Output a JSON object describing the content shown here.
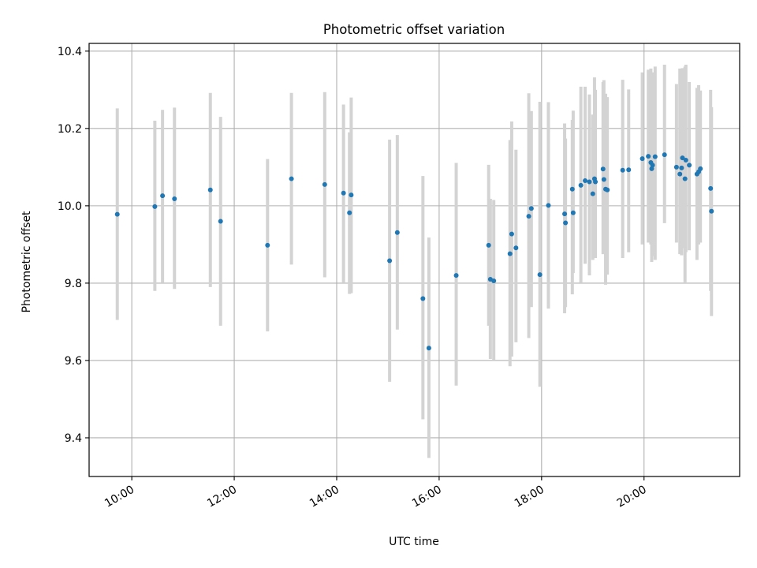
{
  "chart_data": {
    "type": "scatter",
    "title": "Photometric offset variation",
    "xlabel": "UTC time",
    "ylabel": "Photometric offset",
    "x_ticks": [
      "10:00",
      "12:00",
      "14:00",
      "16:00",
      "18:00",
      "20:00"
    ],
    "x_tick_values": [
      10.0,
      12.0,
      14.0,
      16.0,
      18.0,
      20.0
    ],
    "y_ticks": [
      "9.4",
      "9.6",
      "9.8",
      "10.0",
      "10.2",
      "10.4"
    ],
    "y_tick_values": [
      9.4,
      9.6,
      9.8,
      10.0,
      10.2,
      10.4
    ],
    "xlim": [
      "09:10",
      "21:52"
    ],
    "ylim": [
      9.3,
      10.42
    ],
    "grid": true,
    "x_tick_label_rotation_deg": 30,
    "colors": {
      "point": "#1f77b4",
      "errorbar": "#d3d3d3",
      "grid": "#b0b0b0"
    },
    "series": [
      {
        "x": [
          "09:43",
          "10:27",
          "10:36",
          "10:50",
          "11:32",
          "11:44",
          "12:39",
          "13:07",
          "13:46",
          "14:08",
          "14:15",
          "14:17",
          "15:02",
          "15:11",
          "15:41",
          "15:48",
          "16:20",
          "16:58",
          "17:00",
          "17:04",
          "17:23",
          "17:25",
          "17:30",
          "17:45",
          "17:48",
          "17:58",
          "18:08",
          "18:27",
          "18:28",
          "18:36",
          "18:37",
          "18:46",
          "18:51",
          "18:56",
          "19:00",
          "19:02",
          "19:03",
          "19:12",
          "19:13",
          "19:15",
          "19:17",
          "19:35",
          "19:42",
          "19:58",
          "20:05",
          "20:08",
          "20:09",
          "20:10",
          "20:13",
          "20:24",
          "20:38",
          "20:42",
          "20:44",
          "20:45",
          "20:48",
          "20:49",
          "20:53",
          "21:02",
          "21:04",
          "21:06",
          "21:18",
          "21:19"
        ],
        "y": [
          9.978,
          9.998,
          10.026,
          10.018,
          10.041,
          9.96,
          9.898,
          10.07,
          10.055,
          10.033,
          9.982,
          10.028,
          9.858,
          9.931,
          9.76,
          9.632,
          9.82,
          9.898,
          9.81,
          9.806,
          9.876,
          9.927,
          9.891,
          9.973,
          9.993,
          9.822,
          10.001,
          9.979,
          9.956,
          10.043,
          9.982,
          10.053,
          10.065,
          10.062,
          10.031,
          10.07,
          10.062,
          10.095,
          10.068,
          10.043,
          10.041,
          10.092,
          10.093,
          10.122,
          10.128,
          10.112,
          10.096,
          10.105,
          10.127,
          10.132,
          10.1,
          10.082,
          10.098,
          10.124,
          10.07,
          10.118,
          10.105,
          10.082,
          10.088,
          10.096,
          10.045,
          9.986
        ],
        "err_low": [
          9.705,
          9.78,
          9.8,
          9.785,
          9.79,
          9.69,
          9.675,
          9.848,
          9.815,
          9.8,
          9.772,
          9.774,
          9.545,
          9.68,
          9.448,
          9.348,
          9.535,
          9.69,
          9.604,
          9.602,
          9.585,
          9.61,
          9.647,
          9.658,
          9.738,
          9.532,
          9.734,
          9.722,
          9.738,
          9.771,
          9.826,
          9.8,
          9.85,
          9.82,
          9.86,
          9.872,
          9.865,
          9.875,
          9.875,
          9.796,
          9.822,
          9.865,
          9.88,
          9.9,
          9.905,
          9.9,
          9.855,
          9.87,
          9.86,
          9.955,
          9.905,
          9.875,
          9.872,
          9.89,
          9.802,
          9.88,
          9.885,
          9.86,
          9.9,
          9.905,
          9.78,
          9.715
        ],
        "err_high": [
          10.252,
          10.22,
          10.248,
          10.254,
          10.292,
          10.23,
          10.121,
          10.292,
          10.294,
          10.262,
          10.19,
          10.28,
          10.171,
          10.183,
          10.077,
          9.918,
          10.111,
          10.106,
          10.018,
          10.015,
          10.17,
          10.218,
          10.145,
          10.291,
          10.245,
          10.269,
          10.268,
          10.213,
          10.174,
          10.222,
          10.246,
          10.308,
          10.308,
          10.288,
          10.236,
          10.332,
          10.3,
          10.32,
          10.325,
          10.29,
          10.281,
          10.326,
          10.301,
          10.345,
          10.352,
          10.355,
          10.34,
          10.345,
          10.36,
          10.365,
          10.315,
          10.355,
          10.33,
          10.356,
          10.36,
          10.365,
          10.32,
          10.305,
          10.312,
          10.298,
          10.3,
          10.255
        ]
      }
    ]
  }
}
